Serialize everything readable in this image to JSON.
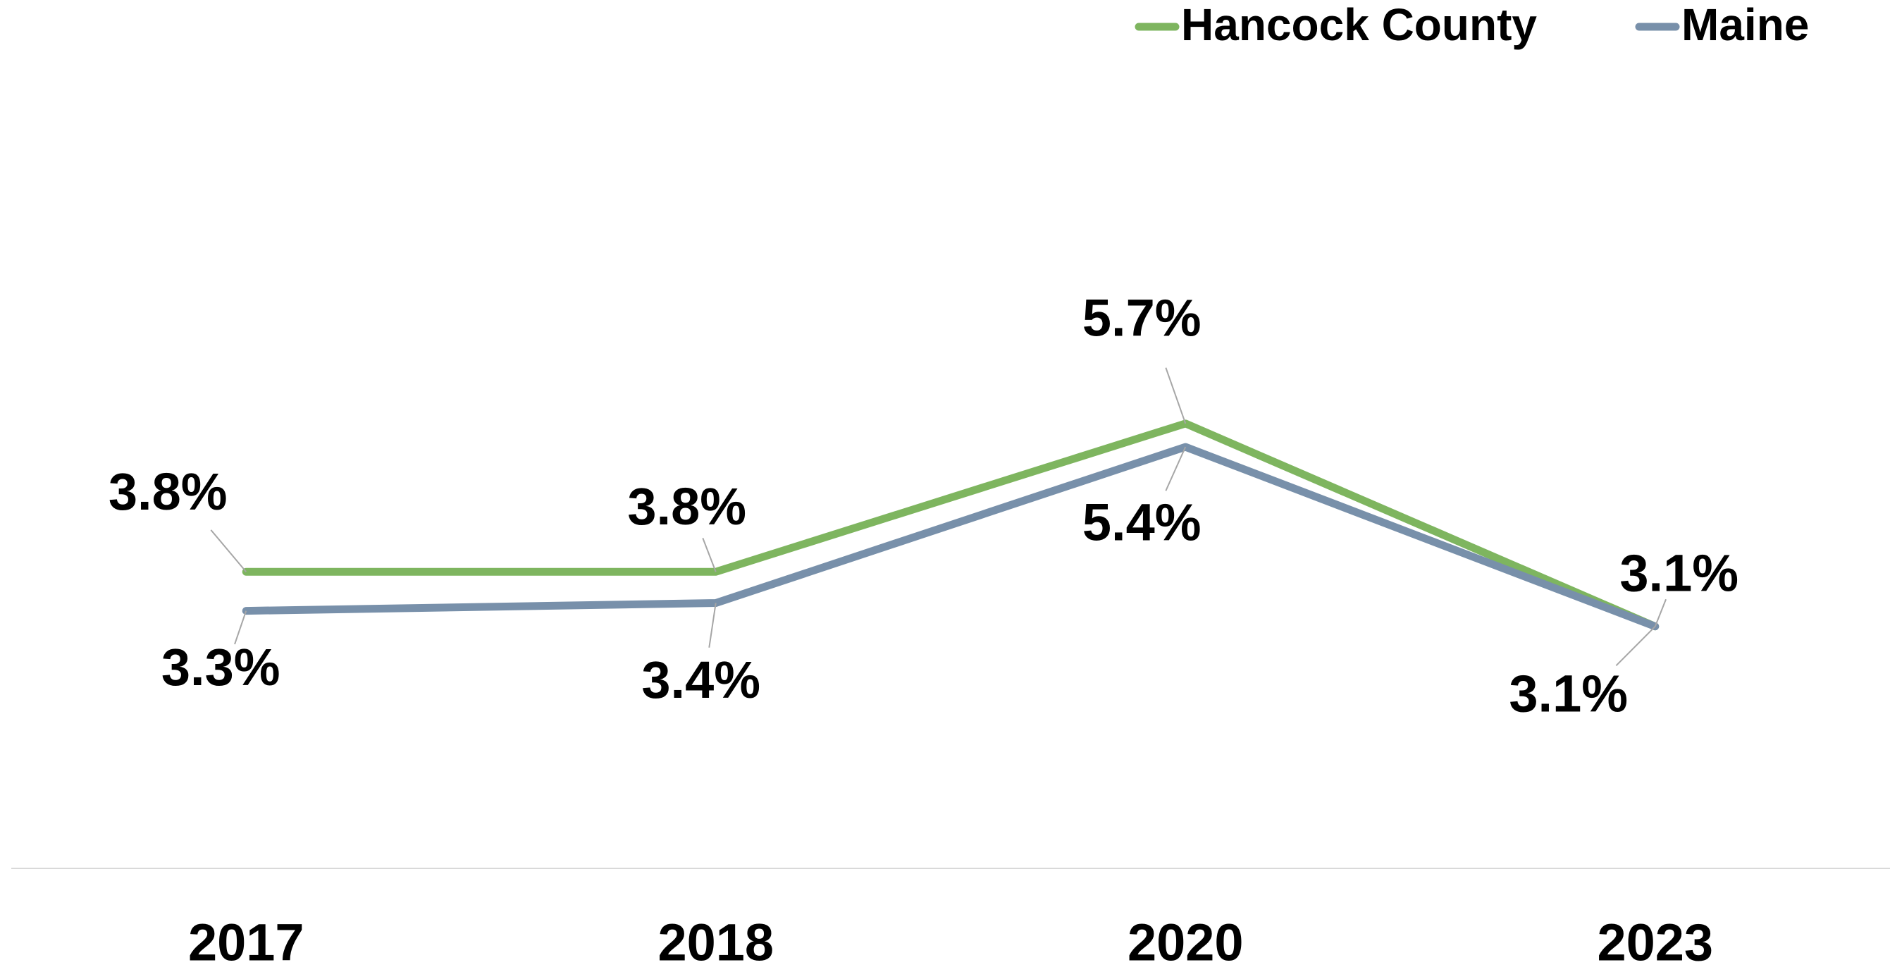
{
  "chart_data": {
    "type": "line",
    "categories": [
      "2017",
      "2018",
      "2020",
      "2023"
    ],
    "series": [
      {
        "name": "Hancock County",
        "color": "#7eb55f",
        "values": [
          3.8,
          3.8,
          5.7,
          3.1
        ],
        "value_labels": [
          "3.8%",
          "3.8%",
          "5.7%",
          "3.1%"
        ]
      },
      {
        "name": "Maine",
        "color": "#7890aa",
        "values": [
          3.3,
          3.4,
          5.4,
          3.1
        ],
        "value_labels": [
          "3.3%",
          "3.4%",
          "5.4%",
          "3.1%"
        ]
      }
    ],
    "ylim": [
      0,
      11
    ],
    "legend": "top-right"
  }
}
